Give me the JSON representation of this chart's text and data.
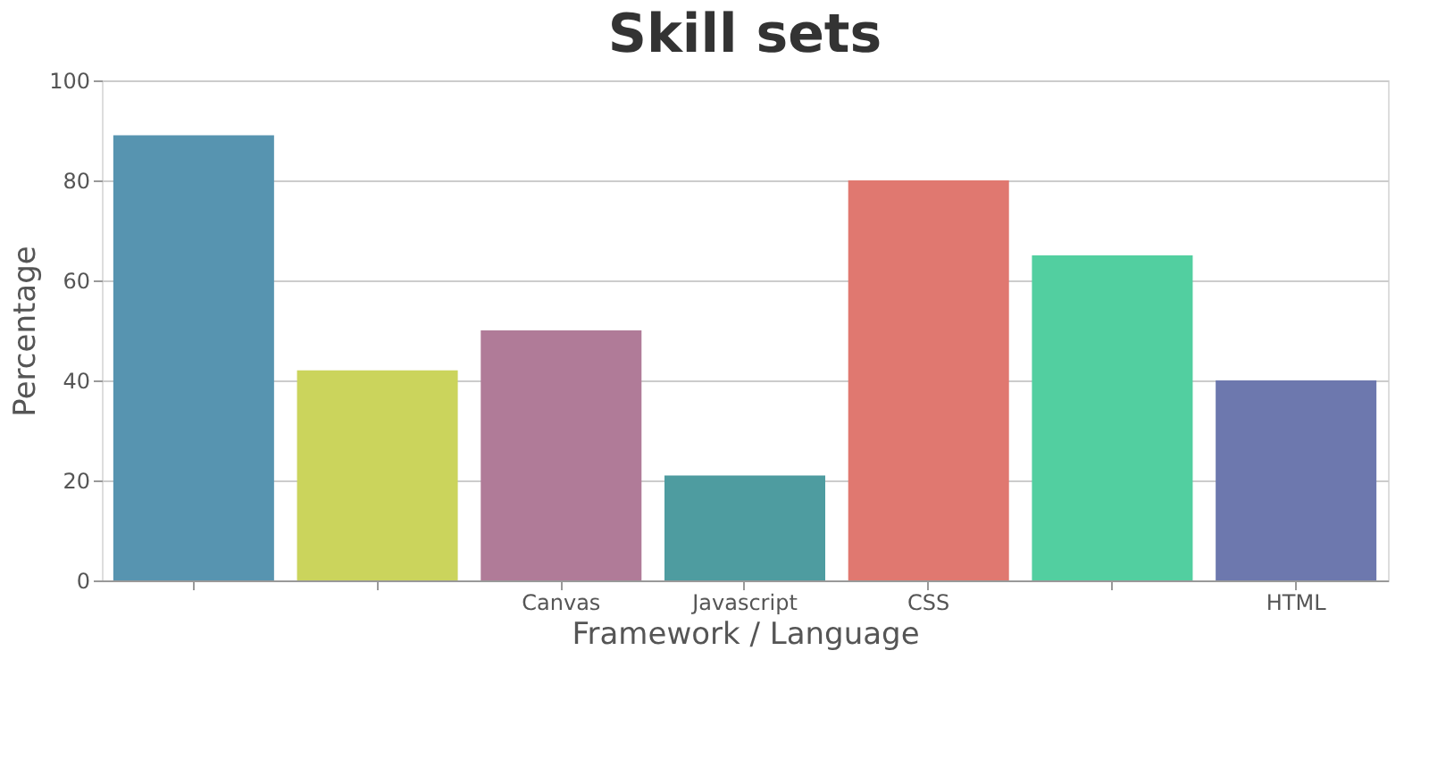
{
  "chart_data": {
    "type": "bar",
    "title": "Skill sets",
    "xlabel": "Framework / Language",
    "ylabel": "Percentage",
    "categories": [
      null,
      null,
      "Canvas",
      "Javascript",
      "CSS",
      null,
      "HTML"
    ],
    "values": [
      89,
      42,
      50,
      21,
      80,
      65,
      40
    ],
    "colors": [
      "#5794b0",
      "#cbd45c",
      "#b07b98",
      "#4e9ca0",
      "#e07870",
      "#52cfa0",
      "#6d78ae"
    ],
    "ylim": [
      0,
      100
    ],
    "yticks": [
      0,
      20,
      40,
      60,
      80,
      100
    ],
    "grid": "y"
  }
}
